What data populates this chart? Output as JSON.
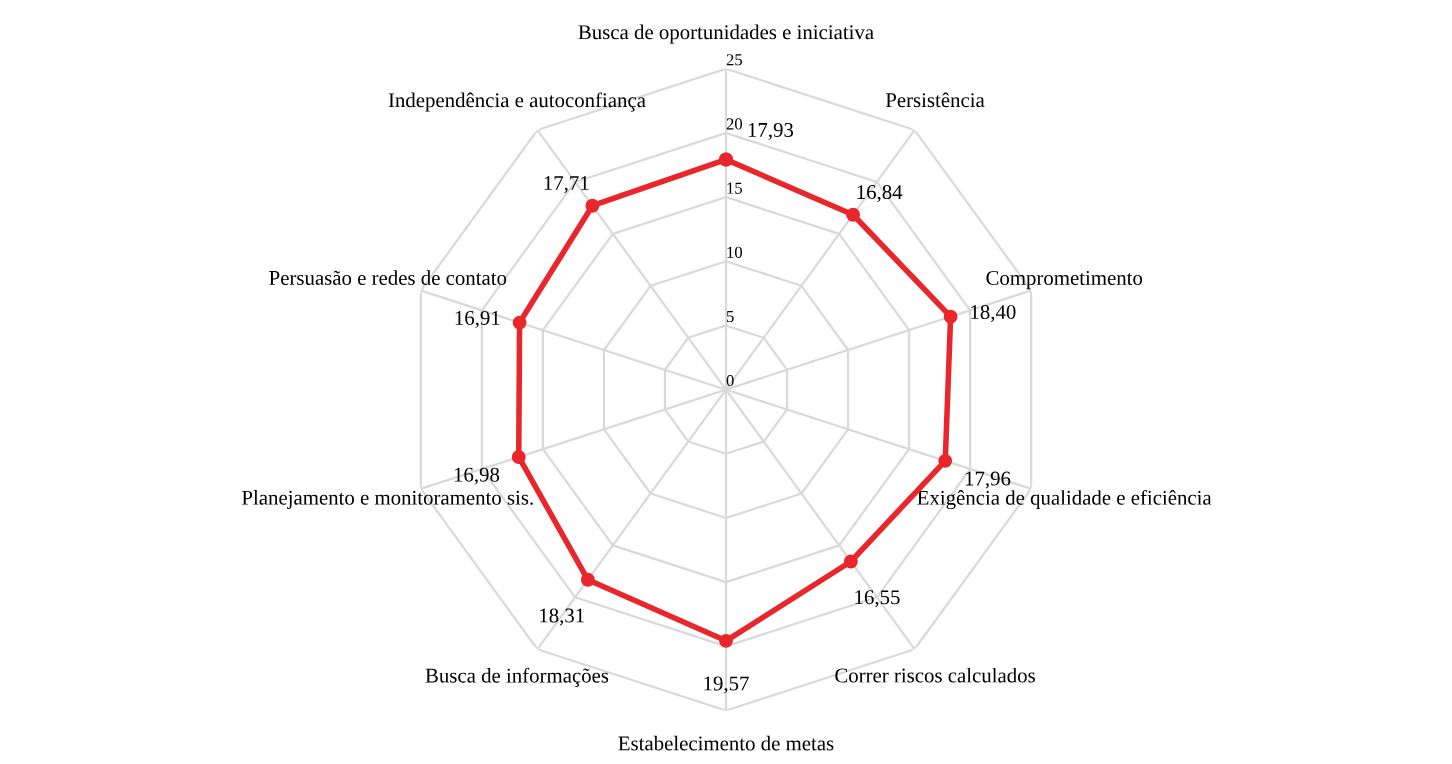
{
  "chart_data": {
    "type": "radar",
    "categories": [
      "Busca de oportunidades e iniciativa",
      "Persistência",
      "Comprometimento",
      "Exigência de qualidade e eficiência",
      "Correr riscos calculados",
      "Estabelecimento de metas",
      "Busca de informações",
      "Planejamento e monitoramento sis.",
      "Persuasão e redes de contato",
      "Independência e autoconfiança"
    ],
    "series": [
      {
        "color": "#e8262b",
        "values": [
          17.93,
          16.84,
          18.4,
          17.96,
          16.55,
          19.57,
          18.31,
          16.98,
          16.91,
          17.71
        ],
        "value_labels": [
          "17,93",
          "16,84",
          "18,40",
          "17,96",
          "16,55",
          "19,57",
          "18,31",
          "16,98",
          "16,91",
          "17,71"
        ]
      }
    ],
    "ylim": [
      0,
      25
    ],
    "yticks": [
      0,
      5,
      10,
      15,
      20,
      25
    ],
    "grid": true,
    "marker": "circle",
    "line_style": "solid"
  }
}
